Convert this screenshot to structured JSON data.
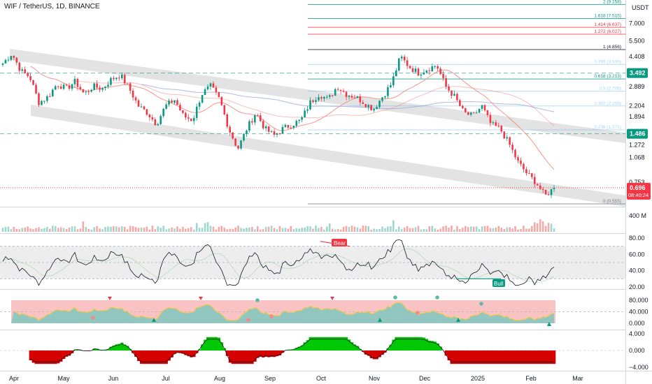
{
  "header": {
    "title": "WIF / TetherUS, 1D, BINANCE"
  },
  "price_axis": {
    "currency": "USDT",
    "ticks": [
      {
        "label": "7.000",
        "v": 7.0
      },
      {
        "label": "5.500",
        "v": 5.5
      },
      {
        "label": "4.408",
        "v": 4.408
      },
      {
        "label": "2.889",
        "v": 2.889
      },
      {
        "label": "2.204",
        "v": 2.204
      },
      {
        "label": "1.894",
        "v": 1.894
      },
      {
        "label": "1.272",
        "v": 1.272
      },
      {
        "label": "1.068",
        "v": 1.068
      },
      {
        "label": "0.753",
        "v": 0.753
      },
      {
        "label": "0.635",
        "v": 0.635
      }
    ],
    "badges": [
      {
        "label": "3.492",
        "v": 3.492,
        "color": "#089981"
      },
      {
        "label": "1.486",
        "v": 1.486,
        "color": "#089981"
      }
    ],
    "last_price": {
      "label": "0.696",
      "countdown": "08:40:24",
      "v": 0.696,
      "color": "#f23645"
    }
  },
  "fib_levels": [
    {
      "label": "2 (9.158)",
      "v": 9.158,
      "color": "#089981"
    },
    {
      "label": "1.618 (7.515)",
      "v": 7.515,
      "color": "#089981"
    },
    {
      "label": "1.414 (6.637)",
      "v": 6.637,
      "color": "#f23645"
    },
    {
      "label": "1.272 (6.027)",
      "v": 6.027,
      "color": "#f23645"
    },
    {
      "label": "1 (4.856)",
      "v": 4.856,
      "color": "#131722"
    },
    {
      "label": "0.786 (3.935)",
      "v": 3.935,
      "color": "#64b5f6"
    },
    {
      "label": "0.618 (3.213)",
      "v": 3.213,
      "color": "#089981"
    },
    {
      "label": "0.5 (2.706)",
      "v": 2.706,
      "color": "#64b5f6"
    },
    {
      "label": "0.382 (2.198)",
      "v": 2.198,
      "color": "#64b5f6"
    },
    {
      "label": "0.236 (1.571)",
      "v": 1.571,
      "color": "#64b5f6"
    },
    {
      "label": "0 (0.555)",
      "v": 0.555,
      "color": "#787b86"
    }
  ],
  "volume": {
    "axis_label": "400 M"
  },
  "rsi": {
    "ticks": [
      "80.00",
      "60.00",
      "40.00",
      "20.00"
    ],
    "bear_label": "Bear",
    "bull_label": "Bull"
  },
  "osc1": {
    "ticks": [
      "80.000",
      "40.000",
      "0.000"
    ]
  },
  "osc2": {
    "ticks": [
      "4.000",
      "0.000",
      "−4.000"
    ]
  },
  "time_axis": [
    "Apr",
    "May",
    "Jun",
    "Jul",
    "Aug",
    "Sep",
    "Oct",
    "Nov",
    "Dec",
    "2025",
    "Feb",
    "Mar"
  ],
  "colors": {
    "up": "#089981",
    "down": "#f23645",
    "channel": "#dcdcdc",
    "ma_red": "#f28b82",
    "ma_blue": "#9fa8da"
  },
  "chart_data": {
    "type": "candlestick",
    "symbol": "WIF / TetherUS",
    "interval": "1D",
    "exchange": "BINANCE",
    "scale": "log",
    "anchors": [
      [
        "Apr",
        4.0
      ],
      [
        "Apr",
        4.6
      ],
      [
        "Apr",
        3.6
      ],
      [
        "Apr",
        3.3
      ],
      [
        "Apr",
        2.3
      ],
      [
        "Apr",
        2.5
      ],
      [
        "May",
        3.0
      ],
      [
        "May",
        2.8
      ],
      [
        "May",
        3.1
      ],
      [
        "May",
        2.6
      ],
      [
        "May",
        2.9
      ],
      [
        "May",
        2.8
      ],
      [
        "Jun",
        3.2
      ],
      [
        "Jun",
        3.4
      ],
      [
        "Jun",
        2.8
      ],
      [
        "Jun",
        2.2
      ],
      [
        "Jun",
        2.0
      ],
      [
        "Jun",
        1.7
      ],
      [
        "Jul",
        2.2
      ],
      [
        "Jul",
        2.4
      ],
      [
        "Jul",
        1.9
      ],
      [
        "Jul",
        1.8
      ],
      [
        "Jul",
        2.6
      ],
      [
        "Jul",
        2.9
      ],
      [
        "Aug",
        2.4
      ],
      [
        "Aug",
        1.6
      ],
      [
        "Aug",
        1.2
      ],
      [
        "Aug",
        1.6
      ],
      [
        "Aug",
        2.0
      ],
      [
        "Aug",
        1.6
      ],
      [
        "Sep",
        1.45
      ],
      [
        "Sep",
        1.6
      ],
      [
        "Sep",
        1.7
      ],
      [
        "Sep",
        1.8
      ],
      [
        "Sep",
        2.3
      ],
      [
        "Sep",
        2.6
      ],
      [
        "Oct",
        2.4
      ],
      [
        "Oct",
        2.9
      ],
      [
        "Oct",
        2.6
      ],
      [
        "Oct",
        2.5
      ],
      [
        "Oct",
        2.3
      ],
      [
        "Oct",
        2.1
      ],
      [
        "Nov",
        2.5
      ],
      [
        "Nov",
        3.0
      ],
      [
        "Nov",
        4.4
      ],
      [
        "Nov",
        3.8
      ],
      [
        "Nov",
        3.5
      ],
      [
        "Nov",
        3.7
      ],
      [
        "Dec",
        3.9
      ],
      [
        "Dec",
        2.9
      ],
      [
        "Dec",
        2.5
      ],
      [
        "Dec",
        2.0
      ],
      [
        "Dec",
        1.9
      ],
      [
        "Dec",
        2.2
      ],
      [
        "2025",
        1.7
      ],
      [
        "2025",
        1.6
      ],
      [
        "2025",
        1.3
      ],
      [
        "2025",
        1.0
      ],
      [
        "2025",
        0.85
      ],
      [
        "Feb",
        0.75
      ],
      [
        "Feb",
        0.62
      ],
      [
        "Feb",
        0.696
      ]
    ]
  }
}
